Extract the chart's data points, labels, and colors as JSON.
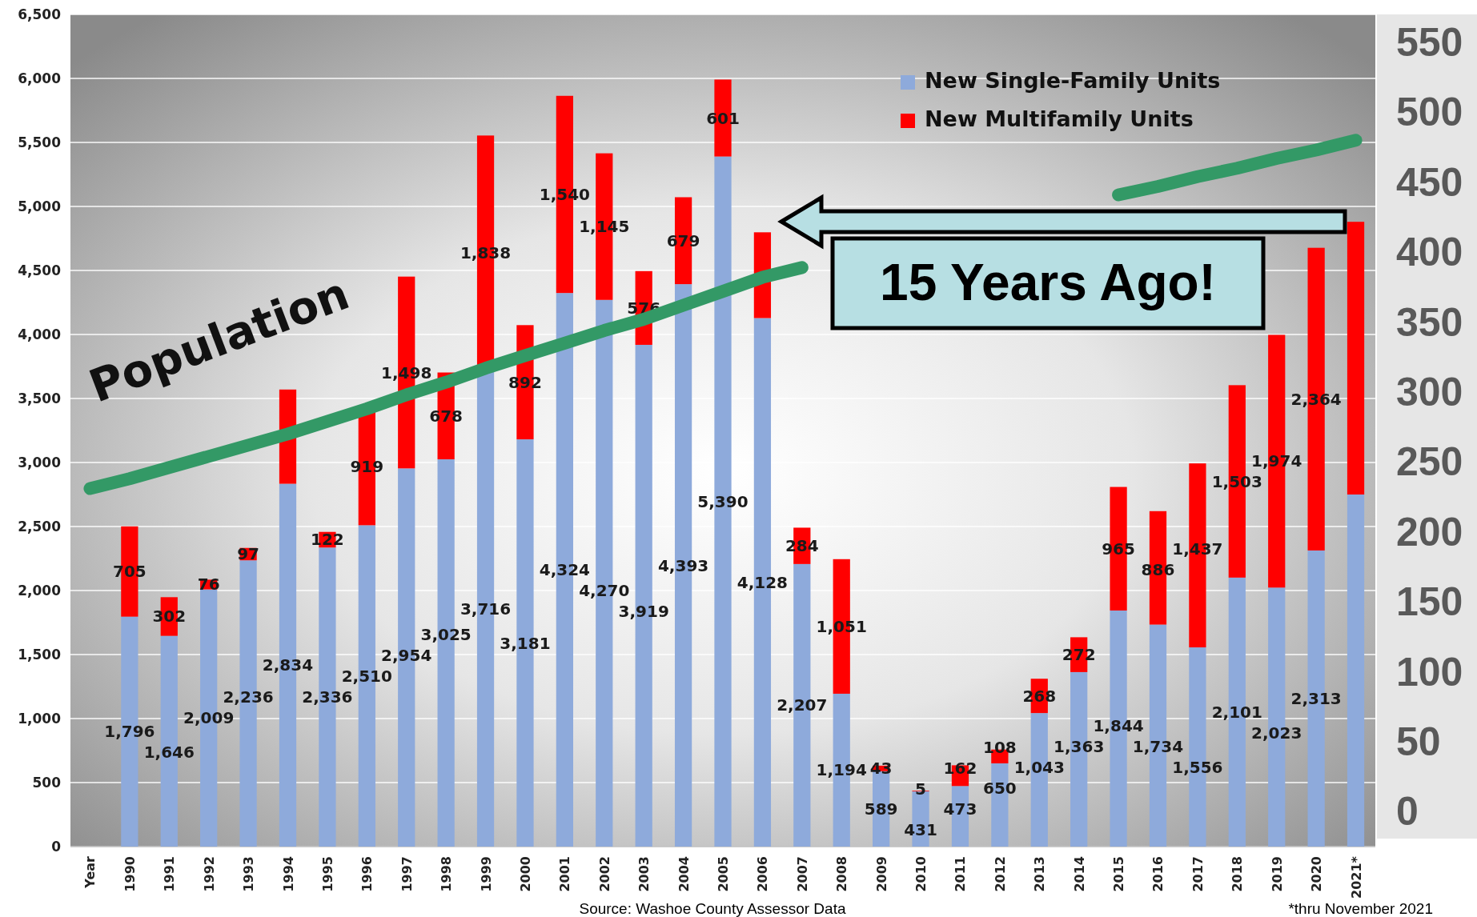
{
  "chart_data": {
    "type": "bar",
    "stacked": true,
    "categories": [
      "Year",
      "1990",
      "1991",
      "1992",
      "1993",
      "1994",
      "1995",
      "1996",
      "1997",
      "1998",
      "1999",
      "2000",
      "2001",
      "2002",
      "2003",
      "2004",
      "2005",
      "2006",
      "2007",
      "2008",
      "2009",
      "2010",
      "2011",
      "2012",
      "2013",
      "2014",
      "2015",
      "2016",
      "2017",
      "2018",
      "2019",
      "2020",
      "2021*"
    ],
    "series": [
      {
        "name": "New Single-Family Units",
        "color": "#8eaadb",
        "values": [
          null,
          1796,
          1646,
          2009,
          2236,
          2834,
          2336,
          2510,
          2954,
          3025,
          3716,
          3181,
          4324,
          4270,
          3919,
          4393,
          5390,
          4128,
          2207,
          1194,
          589,
          431,
          473,
          650,
          1043,
          1363,
          1844,
          1734,
          1556,
          2101,
          2023,
          2313,
          2750
        ],
        "value_labels": [
          null,
          "1,796",
          "1,646",
          "2,009",
          "2,236",
          "2,834",
          "2,336",
          "2,510",
          "2,954",
          "3,025",
          "3,716",
          "3,181",
          "4,324",
          "4,270",
          "3,919",
          "4,393",
          "5,390",
          "4,128",
          "2,207",
          "1,194",
          "589",
          "431",
          "473",
          "650",
          "1,043",
          "1,363",
          "1,844",
          "1,734",
          "1,556",
          "2,101",
          "2,023",
          "2,313",
          null
        ]
      },
      {
        "name": "New Multifamily Units",
        "color": "#ff0000",
        "values": [
          null,
          705,
          302,
          76,
          97,
          736,
          122,
          919,
          1498,
          678,
          1838,
          892,
          1540,
          1145,
          576,
          679,
          601,
          670,
          284,
          1051,
          43,
          5,
          162,
          108,
          268,
          272,
          965,
          886,
          1437,
          1503,
          1974,
          2364,
          2130
        ],
        "value_labels": [
          null,
          "705",
          "302",
          "76",
          "97",
          null,
          "122",
          "919",
          "1,498",
          "678",
          "1,838",
          "892",
          "1,540",
          "1,145",
          "576",
          "679",
          "601",
          null,
          "284",
          "1,051",
          "43",
          "5",
          "162",
          "108",
          "268",
          "272",
          "965",
          "886",
          "1,437",
          "1,503",
          "1,974",
          "2,364",
          null
        ]
      },
      {
        "name": "Population",
        "type": "line",
        "axis": "y2",
        "color": "#339966",
        "values": [
          231,
          238,
          246,
          254,
          262,
          270,
          279,
          288,
          298,
          307,
          317,
          326,
          335,
          344,
          352,
          362,
          372,
          382,
          389,
          null,
          null,
          null,
          null,
          null,
          null,
          null,
          441,
          447,
          454,
          460,
          467,
          473,
          480
        ]
      }
    ],
    "ylim": [
      0,
      6500
    ],
    "yticks": [
      0,
      {
        "value": 500,
        "label": "500"
      },
      {
        "value": 1000,
        "label": "1,000"
      },
      {
        "value": 1500,
        "label": "1,500"
      },
      {
        "value": 2000,
        "label": "2,000"
      },
      {
        "value": 2500,
        "label": "2,500"
      },
      {
        "value": 3000,
        "label": "3,000"
      },
      {
        "value": 3500,
        "label": "3,500"
      },
      {
        "value": 4000,
        "label": "4,000"
      },
      {
        "value": 4500,
        "label": "4,500"
      },
      {
        "value": 5000,
        "label": "5,000"
      },
      {
        "value": 5500,
        "label": "5,500"
      },
      {
        "value": 6000,
        "label": "6,000"
      },
      {
        "value": 6500,
        "label": "6,500"
      }
    ],
    "y2lim": [
      -25,
      570
    ],
    "y2ticks": [
      0,
      50,
      100,
      150,
      200,
      250,
      300,
      350,
      400,
      450,
      500,
      550
    ],
    "grid": "y",
    "legend": "top right",
    "annotations": [
      "15 Years Ago!",
      "Source: Washoe County Assessor Data",
      "*thru November 2021"
    ]
  }
}
